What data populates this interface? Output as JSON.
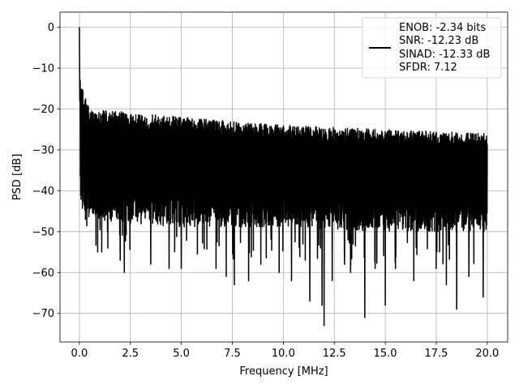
{
  "chart_data": {
    "type": "line",
    "title": "",
    "xlabel": "Frequency [MHz]",
    "ylabel": "PSD [dB]",
    "xlim": [
      -0.95,
      21.0
    ],
    "ylim": [
      -77.0,
      3.7
    ],
    "xticks": [
      0.0,
      2.5,
      5.0,
      7.5,
      10.0,
      12.5,
      15.0,
      17.5,
      20.0
    ],
    "xtick_labels": [
      "0.0",
      "2.5",
      "5.0",
      "7.5",
      "10.0",
      "12.5",
      "15.0",
      "17.5",
      "20.0"
    ],
    "yticks": [
      0,
      -10,
      -20,
      -30,
      -40,
      -50,
      -60,
      -70
    ],
    "ytick_labels": [
      "0",
      "−10",
      "−20",
      "−30",
      "−40",
      "−50",
      "−60",
      "−70"
    ],
    "grid": true,
    "legend_position": "top-right",
    "series": [
      {
        "legend_lines": [
          "ENOB: -2.34 bits",
          "SNR: -12.23 dB",
          "SINAD: -12.33 dB",
          "SFDR: 7.12"
        ],
        "color": "#000000",
        "x_range": [
          0.0,
          20.0
        ],
        "peak": {
          "x": 0.0,
          "y": 0.0
        },
        "noise_floor_upper": {
          "x": [
            0.05,
            0.5,
            5.0,
            10.0,
            15.0,
            20.0
          ],
          "y": [
            -13,
            -20,
            -22,
            -24,
            -25,
            -26
          ]
        },
        "noise_floor_lower": {
          "x": [
            0.05,
            0.5,
            5.0,
            10.0,
            15.0,
            20.0
          ],
          "y": [
            -42,
            -45,
            -47,
            -47,
            -48,
            -48
          ]
        },
        "deep_nulls": [
          {
            "x": 0.3,
            "y": -47
          },
          {
            "x": 0.9,
            "y": -55
          },
          {
            "x": 1.1,
            "y": -55
          },
          {
            "x": 1.4,
            "y": -54
          },
          {
            "x": 2.0,
            "y": -57
          },
          {
            "x": 2.2,
            "y": -60
          },
          {
            "x": 3.5,
            "y": -58
          },
          {
            "x": 4.4,
            "y": -59
          },
          {
            "x": 5.0,
            "y": -59
          },
          {
            "x": 6.7,
            "y": -59
          },
          {
            "x": 7.2,
            "y": -61
          },
          {
            "x": 7.6,
            "y": -63
          },
          {
            "x": 8.3,
            "y": -62
          },
          {
            "x": 8.9,
            "y": -58
          },
          {
            "x": 9.8,
            "y": -60
          },
          {
            "x": 10.4,
            "y": -62
          },
          {
            "x": 11.3,
            "y": -67
          },
          {
            "x": 11.9,
            "y": -68
          },
          {
            "x": 12.0,
            "y": -73
          },
          {
            "x": 12.4,
            "y": -62
          },
          {
            "x": 13.0,
            "y": -58
          },
          {
            "x": 13.3,
            "y": -60
          },
          {
            "x": 14.0,
            "y": -71
          },
          {
            "x": 14.5,
            "y": -59
          },
          {
            "x": 15.0,
            "y": -68
          },
          {
            "x": 15.5,
            "y": -59
          },
          {
            "x": 16.4,
            "y": -62
          },
          {
            "x": 17.5,
            "y": -59
          },
          {
            "x": 18.0,
            "y": -63
          },
          {
            "x": 18.5,
            "y": -69
          },
          {
            "x": 19.1,
            "y": -61
          },
          {
            "x": 19.8,
            "y": -66
          }
        ]
      }
    ]
  }
}
